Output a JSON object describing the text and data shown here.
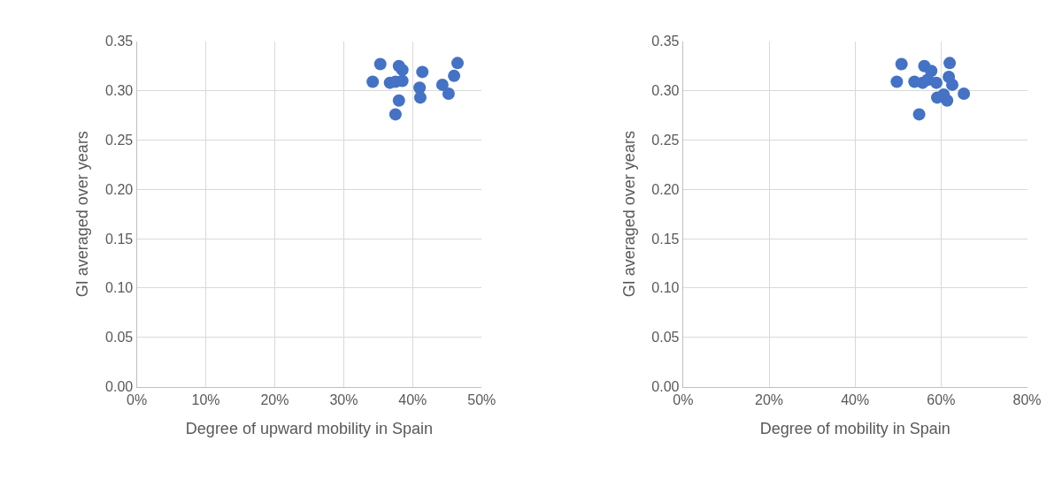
{
  "chart_data": [
    {
      "type": "scatter",
      "xlabel": "Degree of upward mobility in Spain",
      "ylabel": "GI averaged over years",
      "marker": "circle",
      "grid": true,
      "xlim": [
        0,
        0.5
      ],
      "xticks": [
        {
          "value": 0,
          "label": "0%"
        },
        {
          "value": 0.1,
          "label": "10%"
        },
        {
          "value": 0.2,
          "label": "20%"
        },
        {
          "value": 0.3,
          "label": "30%"
        },
        {
          "value": 0.4,
          "label": "40%"
        },
        {
          "value": 0.5,
          "label": "50%"
        }
      ],
      "ylim": [
        0,
        0.35
      ],
      "yticks": [
        {
          "value": 0,
          "label": "0.00"
        },
        {
          "value": 0.05,
          "label": "0.05"
        },
        {
          "value": 0.1,
          "label": "0.10"
        },
        {
          "value": 0.15,
          "label": "0.15"
        },
        {
          "value": 0.2,
          "label": "0.20"
        },
        {
          "value": 0.25,
          "label": "0.25"
        },
        {
          "value": 0.3,
          "label": "0.30"
        },
        {
          "value": 0.35,
          "label": "0.35"
        }
      ],
      "series": [
        {
          "color": "#4472c4",
          "x": [
            0.353,
            0.342,
            0.367,
            0.375,
            0.38,
            0.385,
            0.385,
            0.38,
            0.375,
            0.414,
            0.41,
            0.411,
            0.443,
            0.452,
            0.46,
            0.465
          ],
          "values": [
            0.327,
            0.309,
            0.308,
            0.309,
            0.325,
            0.321,
            0.31,
            0.29,
            0.276,
            0.319,
            0.303,
            0.293,
            0.306,
            0.297,
            0.315,
            0.328
          ]
        }
      ]
    },
    {
      "type": "scatter",
      "xlabel": "Degree of mobility in Spain",
      "ylabel": "GI averaged over years",
      "marker": "circle",
      "grid": true,
      "xlim": [
        0,
        0.8
      ],
      "xticks": [
        {
          "value": 0,
          "label": "0%"
        },
        {
          "value": 0.2,
          "label": "20%"
        },
        {
          "value": 0.4,
          "label": "40%"
        },
        {
          "value": 0.6,
          "label": "60%"
        },
        {
          "value": 0.8,
          "label": "80%"
        }
      ],
      "ylim": [
        0,
        0.35
      ],
      "yticks": [
        {
          "value": 0,
          "label": "0.00"
        },
        {
          "value": 0.05,
          "label": "0.05"
        },
        {
          "value": 0.1,
          "label": "0.10"
        },
        {
          "value": 0.15,
          "label": "0.15"
        },
        {
          "value": 0.2,
          "label": "0.20"
        },
        {
          "value": 0.25,
          "label": "0.25"
        },
        {
          "value": 0.3,
          "label": "0.30"
        },
        {
          "value": 0.35,
          "label": "0.35"
        }
      ],
      "series": [
        {
          "color": "#4472c4",
          "x": [
            0.508,
            0.497,
            0.538,
            0.557,
            0.561,
            0.577,
            0.569,
            0.589,
            0.591,
            0.614,
            0.62,
            0.618,
            0.626,
            0.653,
            0.549,
            0.606
          ],
          "values": [
            0.327,
            0.309,
            0.309,
            0.308,
            0.325,
            0.32,
            0.311,
            0.308,
            0.293,
            0.29,
            0.328,
            0.314,
            0.306,
            0.297,
            0.276,
            0.296
          ]
        }
      ]
    }
  ]
}
